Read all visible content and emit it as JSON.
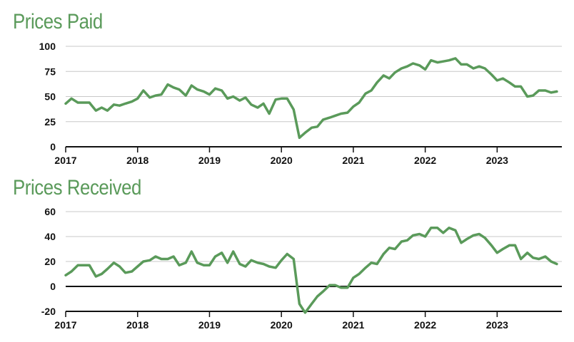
{
  "colors": {
    "line": "#5a9a5a",
    "title": "#5a9a5a",
    "grid": "#c8c8c8",
    "axis": "#111111"
  },
  "chart_data": [
    {
      "type": "line",
      "title": "Prices Paid",
      "x_ticks": [
        "2017",
        "2018",
        "2019",
        "2020",
        "2021",
        "2022",
        "2023"
      ],
      "xlim": [
        2017,
        2023.9
      ],
      "y_ticks": [
        "100",
        "75",
        "50",
        "25",
        "0"
      ],
      "ylim": [
        0,
        100
      ],
      "grid": true,
      "series": [
        {
          "x": [
            2017.0,
            2017.08,
            2017.17,
            2017.25,
            2017.33,
            2017.42,
            2017.5,
            2017.58,
            2017.67,
            2017.75,
            2017.83,
            2017.92,
            2018.0,
            2018.08,
            2018.17,
            2018.25,
            2018.33,
            2018.42,
            2018.5,
            2018.58,
            2018.67,
            2018.75,
            2018.83,
            2018.92,
            2019.0,
            2019.08,
            2019.17,
            2019.25,
            2019.33,
            2019.42,
            2019.5,
            2019.58,
            2019.67,
            2019.75,
            2019.83,
            2019.92,
            2020.0,
            2020.08,
            2020.17,
            2020.25,
            2020.33,
            2020.42,
            2020.5,
            2020.58,
            2020.67,
            2020.75,
            2020.83,
            2020.92,
            2021.0,
            2021.08,
            2021.17,
            2021.25,
            2021.33,
            2021.42,
            2021.5,
            2021.58,
            2021.67,
            2021.75,
            2021.83,
            2021.92,
            2022.0,
            2022.08,
            2022.17,
            2022.25,
            2022.33,
            2022.42,
            2022.5,
            2022.58,
            2022.67,
            2022.75,
            2022.83,
            2022.92,
            2023.0,
            2023.08,
            2023.17,
            2023.25,
            2023.33,
            2023.42,
            2023.5,
            2023.58,
            2023.67,
            2023.75,
            2023.83
          ],
          "y": [
            43,
            48,
            44,
            44,
            44,
            36,
            39,
            36,
            42,
            41,
            43,
            45,
            48,
            56,
            49,
            51,
            52,
            62,
            59,
            57,
            51,
            61,
            57,
            55,
            52,
            58,
            56,
            48,
            50,
            46,
            49,
            42,
            39,
            43,
            33,
            47,
            48,
            48,
            37,
            9,
            14,
            19,
            20,
            27,
            29,
            31,
            33,
            34,
            40,
            44,
            53,
            56,
            64,
            71,
            68,
            74,
            78,
            80,
            83,
            81,
            77,
            86,
            84,
            85,
            86,
            88,
            82,
            82,
            78,
            80,
            78,
            72,
            66,
            68,
            64,
            60,
            60,
            50,
            51,
            56,
            56,
            54,
            55
          ]
        }
      ]
    },
    {
      "type": "line",
      "title": "Prices Received",
      "x_ticks": [
        "2017",
        "2018",
        "2019",
        "2020",
        "2021",
        "2022",
        "2023"
      ],
      "xlim": [
        2017,
        2023.9
      ],
      "y_ticks": [
        "60",
        "40",
        "20",
        "0",
        "-20"
      ],
      "ylim": [
        -20,
        60
      ],
      "grid": true,
      "series": [
        {
          "x": [
            2017.0,
            2017.08,
            2017.17,
            2017.25,
            2017.33,
            2017.42,
            2017.5,
            2017.58,
            2017.67,
            2017.75,
            2017.83,
            2017.92,
            2018.0,
            2018.08,
            2018.17,
            2018.25,
            2018.33,
            2018.42,
            2018.5,
            2018.58,
            2018.67,
            2018.75,
            2018.83,
            2018.92,
            2019.0,
            2019.08,
            2019.17,
            2019.25,
            2019.33,
            2019.42,
            2019.5,
            2019.58,
            2019.67,
            2019.75,
            2019.83,
            2019.92,
            2020.0,
            2020.08,
            2020.17,
            2020.25,
            2020.33,
            2020.42,
            2020.5,
            2020.58,
            2020.67,
            2020.75,
            2020.83,
            2020.92,
            2021.0,
            2021.08,
            2021.17,
            2021.25,
            2021.33,
            2021.42,
            2021.5,
            2021.58,
            2021.67,
            2021.75,
            2021.83,
            2021.92,
            2022.0,
            2022.08,
            2022.17,
            2022.25,
            2022.33,
            2022.42,
            2022.5,
            2022.58,
            2022.67,
            2022.75,
            2022.83,
            2022.92,
            2023.0,
            2023.08,
            2023.17,
            2023.25,
            2023.33,
            2023.42,
            2023.5,
            2023.58,
            2023.67,
            2023.75,
            2023.83
          ],
          "y": [
            9,
            12,
            17,
            17,
            17,
            8,
            10,
            14,
            19,
            16,
            11,
            12,
            16,
            20,
            21,
            24,
            22,
            22,
            24,
            17,
            19,
            28,
            19,
            17,
            17,
            24,
            27,
            19,
            28,
            18,
            16,
            21,
            19,
            18,
            16,
            15,
            21,
            26,
            22,
            -14,
            -21,
            -14,
            -8,
            -4,
            1,
            1,
            -1,
            -1,
            7,
            10,
            15,
            19,
            18,
            26,
            31,
            30,
            36,
            37,
            41,
            42,
            40,
            47,
            47,
            43,
            47,
            45,
            35,
            38,
            41,
            42,
            39,
            33,
            27,
            30,
            33,
            33,
            22,
            27,
            23,
            22,
            24,
            20,
            18
          ]
        }
      ]
    }
  ]
}
